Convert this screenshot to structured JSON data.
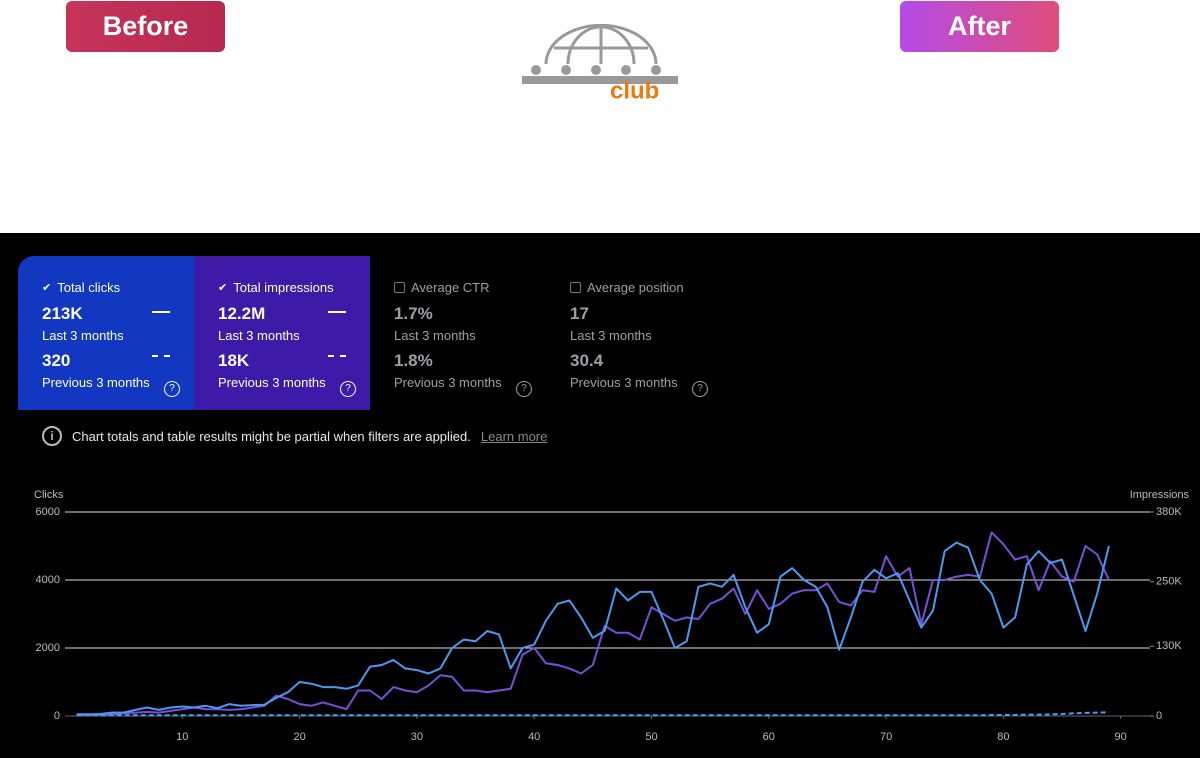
{
  "header": {
    "before": "Before",
    "after": "After",
    "logo_text": "club"
  },
  "metrics": [
    {
      "title": "Total clicks",
      "value": "213K",
      "period": "Last 3 months",
      "prev_value": "320",
      "prev_period": "Previous 3 months"
    },
    {
      "title": "Total impressions",
      "value": "12.2M",
      "period": "Last 3 months",
      "prev_value": "18K",
      "prev_period": "Previous 3 months"
    },
    {
      "title": "Average CTR",
      "value": "1.7%",
      "period": "Last 3 months",
      "prev_value": "1.8%",
      "prev_period": "Previous 3 months"
    },
    {
      "title": "Average position",
      "value": "17",
      "period": "Last 3 months",
      "prev_value": "30.4",
      "prev_period": "Previous 3 months"
    }
  ],
  "notice": {
    "text": "Chart totals and table results might be partial when filters are applied.",
    "link": "Learn more"
  },
  "chart_data": {
    "type": "line",
    "ylabel": "Clicks",
    "y2label": "Impressions",
    "x": [
      1,
      2,
      3,
      4,
      5,
      6,
      7,
      8,
      9,
      10,
      11,
      12,
      13,
      14,
      15,
      16,
      17,
      18,
      19,
      20,
      21,
      22,
      23,
      24,
      25,
      26,
      27,
      28,
      29,
      30,
      31,
      32,
      33,
      34,
      35,
      36,
      37,
      38,
      39,
      40,
      41,
      42,
      43,
      44,
      45,
      46,
      47,
      48,
      49,
      50,
      51,
      52,
      53,
      54,
      55,
      56,
      57,
      58,
      59,
      60,
      61,
      62,
      63,
      64,
      65,
      66,
      67,
      68,
      69,
      70,
      71,
      72,
      73,
      74,
      75,
      76,
      77,
      78,
      79,
      80,
      81,
      82,
      83,
      84,
      85,
      86,
      87,
      88,
      89
    ],
    "xlim": [
      0,
      92.5
    ],
    "xticks": [
      10,
      20,
      30,
      40,
      50,
      60,
      70,
      80,
      90
    ],
    "ylim": [
      0,
      6000
    ],
    "yticks": [
      0,
      2000,
      4000,
      6000
    ],
    "y2lim": [
      0,
      380000
    ],
    "y2ticks": [
      0,
      {
        "value": 130000,
        "label": "130K"
      },
      {
        "value": 250000,
        "label": "250K"
      },
      {
        "value": 380000,
        "label": "380K"
      }
    ],
    "grid": true,
    "series": [
      {
        "name": "Impressions",
        "axis": "y2",
        "color": "#7a4fd8",
        "values": [
          1900,
          1900,
          2500,
          3200,
          5100,
          6300,
          7600,
          6300,
          9500,
          12700,
          15800,
          12700,
          12700,
          11400,
          12700,
          15800,
          19000,
          38000,
          31700,
          22200,
          19000,
          25300,
          19000,
          12700,
          47500,
          47500,
          31700,
          53800,
          47500,
          44300,
          57000,
          76000,
          72800,
          47500,
          47500,
          44300,
          47500,
          50700,
          114000,
          126700,
          98200,
          95000,
          88700,
          79200,
          95000,
          167800,
          155200,
          155200,
          142500,
          202700,
          190000,
          177300,
          183700,
          180500,
          209000,
          218500,
          237500,
          190000,
          234300,
          199500,
          209000,
          228000,
          234300,
          234300,
          247000,
          212200,
          205800,
          234300,
          231200,
          297700,
          259700,
          275500,
          171000,
          253300,
          253300,
          259700,
          262800,
          259700,
          342000,
          319800,
          291300,
          297700,
          234300,
          288200,
          259700,
          250200,
          316700,
          300800,
          253300
        ]
      },
      {
        "name": "Clicks",
        "color": "#4a9af2",
        "values": [
          50,
          50,
          60,
          100,
          100,
          180,
          250,
          180,
          250,
          280,
          250,
          300,
          230,
          350,
          300,
          320,
          330,
          530,
          700,
          1000,
          950,
          850,
          850,
          800,
          900,
          1450,
          1500,
          1650,
          1400,
          1350,
          1250,
          1400,
          2000,
          2250,
          2200,
          2500,
          2400,
          1400,
          2000,
          2100,
          2800,
          3300,
          3400,
          2900,
          2300,
          2500,
          3750,
          3400,
          3650,
          3650,
          2850,
          2000,
          2200,
          3800,
          3900,
          3800,
          4150,
          3200,
          2450,
          2700,
          4100,
          4350,
          4000,
          3800,
          3200,
          1950,
          2900,
          3950,
          4300,
          4050,
          4200,
          3400,
          2600,
          3100,
          4850,
          5100,
          4950,
          4000,
          3600,
          2600,
          2900,
          4450,
          4850,
          4500,
          4600,
          3550,
          2500,
          3600,
          5000
        ]
      },
      {
        "dashed": true,
        "color": "#4a9af2",
        "values": [
          20,
          20,
          20,
          20,
          20,
          20,
          20,
          20,
          20,
          20,
          20,
          20,
          20,
          20,
          20,
          20,
          20,
          20,
          20,
          20,
          20,
          20,
          20,
          20,
          20,
          20,
          20,
          20,
          20,
          20,
          20,
          20,
          20,
          20,
          20,
          20,
          20,
          20,
          20,
          20,
          20,
          20,
          20,
          20,
          20,
          20,
          20,
          20,
          20,
          20,
          20,
          20,
          20,
          20,
          20,
          20,
          20,
          20,
          20,
          20,
          20,
          20,
          20,
          20,
          20,
          20,
          20,
          20,
          20,
          20,
          20,
          20,
          20,
          20,
          20,
          20,
          20,
          20,
          30,
          30,
          30,
          40,
          40,
          50,
          60,
          80,
          90,
          100,
          110
        ]
      }
    ]
  }
}
